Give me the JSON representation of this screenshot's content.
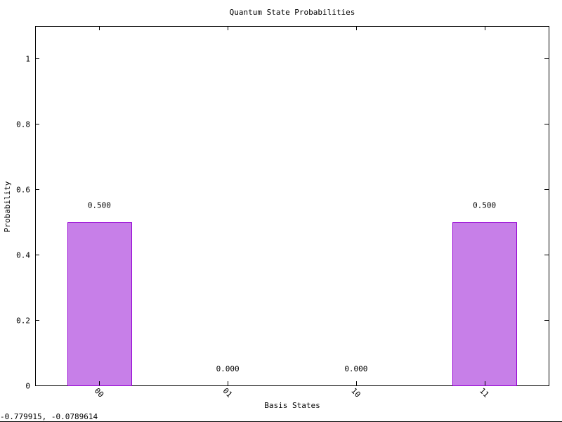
{
  "chart_data": {
    "type": "bar",
    "title": "Quantum State Probabilities",
    "xlabel": "Basis States",
    "ylabel": "Probability",
    "categories": [
      "00",
      "01",
      "10",
      "11"
    ],
    "values": [
      0.5,
      0.0,
      0.0,
      0.5
    ],
    "value_labels": [
      "0.500",
      "0.000",
      "0.000",
      "0.500"
    ],
    "yticks": [
      0,
      0.2,
      0.4,
      0.6,
      0.8,
      1
    ],
    "ytick_labels": [
      "0",
      "0.2",
      "0.4",
      "0.6",
      "0.8",
      "1"
    ],
    "ylim": [
      0,
      1.1
    ],
    "grid": false,
    "bar_color": "#c77fe8",
    "bar_edge_color": "#9400d3"
  },
  "status": {
    "coordinates": "-0.779915, -0.0789614"
  }
}
